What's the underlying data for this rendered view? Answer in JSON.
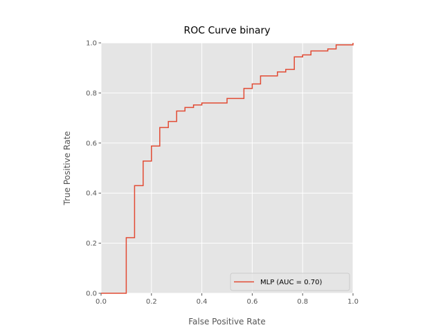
{
  "chart_data": {
    "type": "line",
    "title": "ROC Curve binary",
    "xlabel": "False Positive Rate",
    "ylabel": "True Positive Rate",
    "xlim": [
      0.0,
      1.0
    ],
    "ylim": [
      0.0,
      1.0
    ],
    "xticks": [
      0.0,
      0.2,
      0.4,
      0.6,
      0.8,
      1.0
    ],
    "yticks": [
      0.0,
      0.2,
      0.4,
      0.6,
      0.8,
      1.0
    ],
    "xtick_labels": [
      "0.0",
      "0.2",
      "0.4",
      "0.6",
      "0.8",
      "1.0"
    ],
    "ytick_labels": [
      "0.0",
      "0.2",
      "0.4",
      "0.6",
      "0.8",
      "1.0"
    ],
    "grid": true,
    "legend_position": "bottom-right",
    "series": [
      {
        "name": "MLP (AUC = 0.70)",
        "color": "#e24a33",
        "x": [
          0.0,
          0.1,
          0.1,
          0.133,
          0.133,
          0.167,
          0.167,
          0.2,
          0.2,
          0.233,
          0.233,
          0.267,
          0.267,
          0.3,
          0.3,
          0.333,
          0.333,
          0.367,
          0.367,
          0.4,
          0.4,
          0.5,
          0.5,
          0.567,
          0.567,
          0.6,
          0.6,
          0.633,
          0.633,
          0.7,
          0.7,
          0.733,
          0.733,
          0.767,
          0.767,
          0.8,
          0.8,
          0.833,
          0.833,
          0.9,
          0.9,
          0.933,
          0.933,
          1.0,
          1.0
        ],
        "y": [
          0.0,
          0.0,
          0.222,
          0.222,
          0.43,
          0.43,
          0.528,
          0.528,
          0.588,
          0.588,
          0.662,
          0.662,
          0.686,
          0.686,
          0.728,
          0.728,
          0.742,
          0.742,
          0.752,
          0.752,
          0.76,
          0.76,
          0.778,
          0.778,
          0.818,
          0.818,
          0.836,
          0.836,
          0.868,
          0.868,
          0.884,
          0.884,
          0.894,
          0.894,
          0.944,
          0.944,
          0.952,
          0.952,
          0.968,
          0.968,
          0.976,
          0.976,
          0.992,
          0.992,
          1.0
        ]
      }
    ]
  }
}
